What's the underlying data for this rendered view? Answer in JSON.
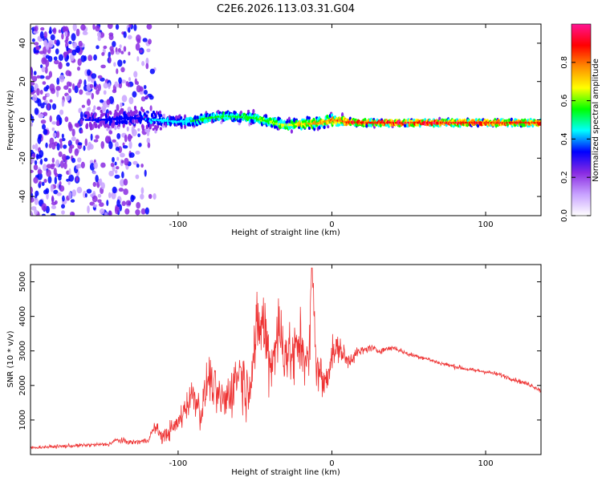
{
  "title": "C2E6.2026.113.03.31.G04",
  "chart_data": [
    {
      "type": "heatmap",
      "xlabel": "Height of straight line (km)",
      "ylabel": "Frequency (Hz)",
      "xlim": [
        -196,
        136
      ],
      "ylim": [
        -50,
        50
      ],
      "xticks": [
        -100,
        0,
        100
      ],
      "yticks": [
        -40,
        -20,
        0,
        20,
        40
      ],
      "grid": false,
      "colorbar": {
        "label": "Normalized spectral amplitude",
        "range": [
          0,
          1
        ],
        "ticks": [
          0.0,
          0.2,
          0.4,
          0.6,
          0.8
        ],
        "tick_labels": [
          "0.0",
          "0.2",
          "0.4",
          "0.6",
          "0.8"
        ],
        "colors": [
          "#ffffff",
          "#c8a2ff",
          "#8a2be2",
          "#0000ff",
          "#00ffff",
          "#00ff00",
          "#ffff00",
          "#ff8c00",
          "#ff0000",
          "#ff1493"
        ]
      },
      "ridge": {
        "description_free": true,
        "height_km": [
          -150,
          -130,
          -115,
          -100,
          -90,
          -80,
          -70,
          -60,
          -50,
          -40,
          -30,
          -20,
          -10,
          0,
          10,
          20,
          40,
          60,
          80,
          100,
          120,
          136
        ],
        "frequency_hz": [
          0,
          1,
          0,
          -1,
          -0.5,
          1,
          2,
          1.5,
          1,
          -1,
          -3,
          -2,
          -2,
          0,
          -1,
          -1.5,
          -1.5,
          -1.5,
          -1.5,
          -1.5,
          -1.5,
          -1.5
        ],
        "amplitude": [
          0.3,
          0.35,
          0.4,
          0.45,
          0.5,
          0.55,
          0.55,
          0.55,
          0.6,
          0.6,
          0.65,
          0.7,
          0.75,
          0.8,
          0.85,
          0.9,
          0.92,
          0.93,
          0.93,
          0.92,
          0.9,
          0.88
        ]
      },
      "noise_region_km": [
        -196,
        -115
      ]
    },
    {
      "type": "line",
      "xlabel": "Height of straight line (km)",
      "ylabel": "SNR (10 * v/v)",
      "xlim": [
        -196,
        136
      ],
      "ylim": [
        0,
        5500
      ],
      "xticks": [
        -100,
        0,
        100
      ],
      "yticks": [
        1000,
        2000,
        3000,
        4000,
        5000
      ],
      "grid": false,
      "series": [
        {
          "color": "#ee3333",
          "x": [
            -196,
            -180,
            -160,
            -145,
            -140,
            -130,
            -120,
            -115,
            -110,
            -100,
            -95,
            -90,
            -85,
            -80,
            -75,
            -70,
            -65,
            -60,
            -55,
            -50,
            -45,
            -40,
            -35,
            -30,
            -25,
            -20,
            -15,
            -13,
            -10,
            -5,
            0,
            5,
            10,
            15,
            20,
            25,
            30,
            35,
            40,
            45,
            50,
            60,
            70,
            80,
            90,
            100,
            110,
            120,
            130,
            136
          ],
          "y": [
            200,
            230,
            270,
            300,
            420,
            350,
            400,
            800,
            500,
            900,
            1400,
            1800,
            1200,
            2300,
            1700,
            1500,
            1900,
            2500,
            1800,
            3200,
            3900,
            2600,
            3600,
            3000,
            2800,
            3300,
            2500,
            5400,
            2600,
            2000,
            2900,
            3100,
            2700,
            2900,
            3000,
            3100,
            3000,
            3050,
            3100,
            3000,
            2900,
            2800,
            2650,
            2550,
            2450,
            2400,
            2300,
            2150,
            2000,
            1850
          ],
          "spread": [
            60,
            70,
            80,
            90,
            120,
            110,
            120,
            250,
            300,
            500,
            600,
            800,
            700,
            900,
            900,
            1000,
            1100,
            1200,
            1300,
            1500,
            1600,
            1600,
            1600,
            1500,
            1400,
            1300,
            1200,
            800,
            1000,
            900,
            700,
            500,
            400,
            300,
            200,
            150,
            130,
            120,
            110,
            100,
            100,
            90,
            90,
            90,
            90,
            90,
            90,
            90,
            90,
            90
          ]
        }
      ]
    }
  ]
}
